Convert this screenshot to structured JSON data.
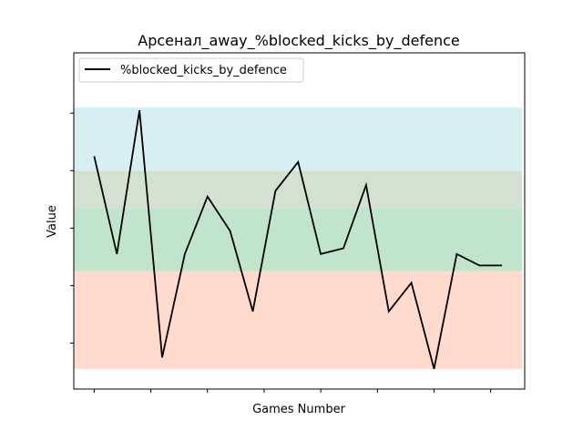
{
  "chart_data": {
    "type": "line",
    "title": "Арсенал_away_%blocked_kicks_by_defence",
    "xlabel": "Games Number",
    "ylabel": "Value",
    "x": [
      1,
      2,
      3,
      4,
      5,
      6,
      7,
      8,
      9,
      10,
      11,
      12,
      13,
      14,
      15,
      16,
      17,
      18,
      19
    ],
    "xlim": [
      0.1,
      20.0
    ],
    "ylim": [
      -0.3,
      11.4
    ],
    "y_tick_labels_visible": false,
    "x_tick_labels_visible": false,
    "grid": false,
    "legend_position": "top-left",
    "series": [
      {
        "name": "%blocked_kicks_by_defence",
        "color": "#000000",
        "values": [
          7.8,
          4.4,
          9.4,
          0.8,
          4.4,
          6.4,
          5.2,
          2.4,
          6.6,
          7.6,
          4.4,
          4.6,
          6.8,
          2.4,
          3.4,
          0.4,
          4.4,
          4.0,
          4.0
        ]
      }
    ],
    "bands": [
      {
        "from": 0.4,
        "to": 3.8,
        "color": "#ffdacd"
      },
      {
        "from": 3.8,
        "to": 6.0,
        "color": "#c0e5cc"
      },
      {
        "from": 6.0,
        "to": 7.3,
        "color": "#d3e1d0"
      },
      {
        "from": 7.3,
        "to": 9.5,
        "color": "#d7eef2"
      }
    ],
    "x_ticks": [
      1,
      3.5,
      6,
      8.5,
      11,
      13.5,
      16,
      18.5
    ],
    "y_ticks": [
      1.3,
      3.3,
      5.3,
      7.3,
      9.3
    ]
  }
}
